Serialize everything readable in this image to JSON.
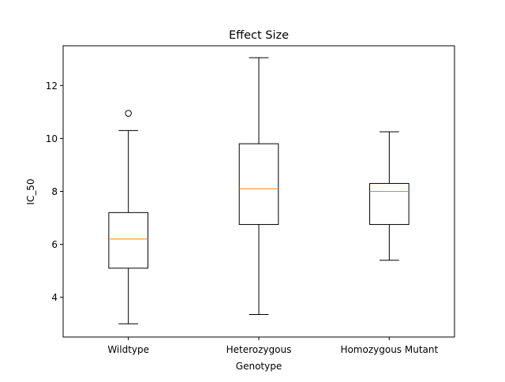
{
  "chart_data": {
    "type": "box",
    "title": "Effect Size",
    "xlabel": "Genotype",
    "ylabel": "IC_50",
    "ylim": [
      2.5,
      13.5
    ],
    "yticks": [
      4,
      6,
      8,
      10,
      12
    ],
    "grid": false,
    "legend": "none",
    "categories": [
      "Wildtype",
      "Heterozygous",
      "Homozygous Mutant"
    ],
    "boxes": [
      {
        "category": "Wildtype",
        "whisker_low": 3.0,
        "q1": 5.1,
        "median": 6.2,
        "q3": 7.2,
        "whisker_high": 10.3,
        "outliers": [
          10.95
        ]
      },
      {
        "category": "Heterozygous",
        "whisker_low": 3.35,
        "q1": 6.75,
        "median": 8.1,
        "q3": 9.8,
        "whisker_high": 13.05,
        "outliers": []
      },
      {
        "category": "Homozygous Mutant",
        "whisker_low": 5.4,
        "q1": 6.75,
        "median": 8.0,
        "q3": 8.3,
        "whisker_high": 10.25,
        "outliers": []
      }
    ],
    "colors": {
      "box": "#000000",
      "median": "#ff7f0e",
      "axes": "#000000"
    }
  }
}
